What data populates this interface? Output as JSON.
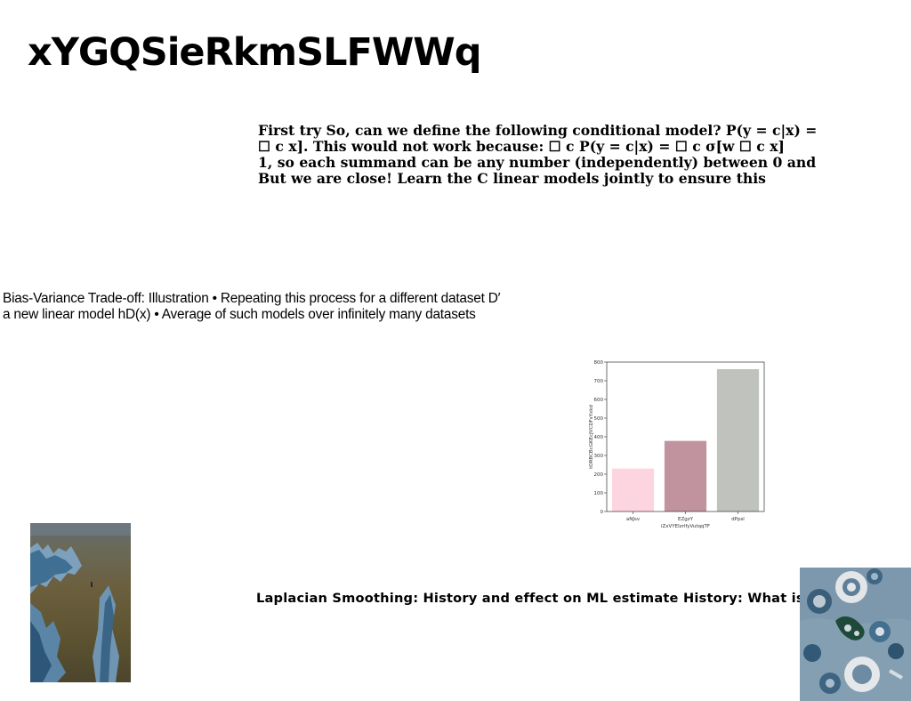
{
  "title": "xYGQSieRkmSLFWWq",
  "paragraph_1": {
    "lines": [
      "First try So, can we define the following conditional model? P(y = c|x) =",
      "☐ c x]. This would not work because: ☐ c P(y = c|x) = ☐ c σ[w ☐ c x]",
      "1, so each summand can be any number (independently) between 0 and",
      "But we are close! Learn the C linear models jointly to ensure this"
    ]
  },
  "paragraph_2": {
    "lines": [
      "Bias-Variance Trade-off: Illustration • Repeating this process for a different dataset D′",
      "a new linear model hD(x) • Average of such models over infinitely many datasets"
    ]
  },
  "paragraph_3": "Laplacian Smoothing: History and effect on ML estimate History: What is",
  "chart_data": {
    "type": "bar",
    "categories": [
      "aNJsv",
      "EZgzY",
      "dPpsl"
    ],
    "values": [
      230,
      378,
      762
    ],
    "colors": [
      "#fdd5e0",
      "#c0939f",
      "#c0c3bd"
    ],
    "xlabel": "iZxVYEIzrlfyVutqqTF",
    "ylabel": "tORBCBcGKEcJVCDFsYxkd",
    "ylim": [
      0,
      800
    ],
    "yticks": [
      0,
      100,
      200,
      300,
      400,
      500,
      600,
      700,
      800
    ],
    "grid": false
  },
  "images": {
    "coast": "rocky-coast-photo",
    "table": "table-setting-photo"
  }
}
